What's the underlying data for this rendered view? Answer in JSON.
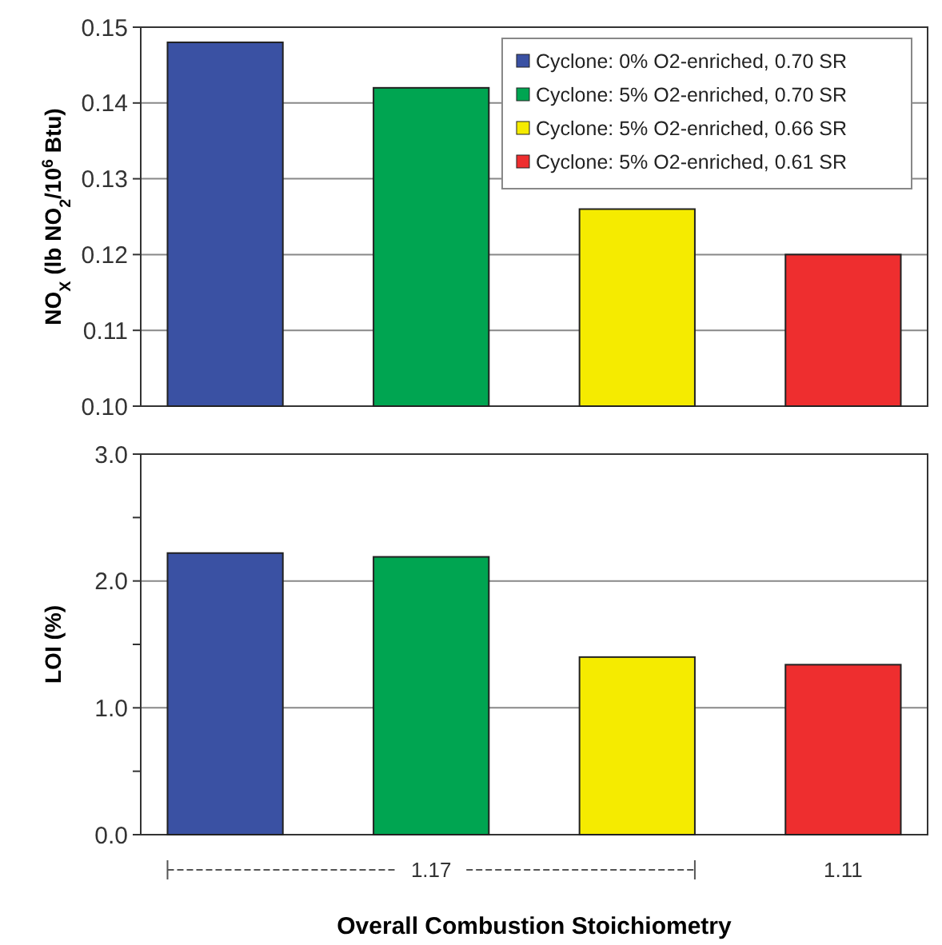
{
  "chart_data": [
    {
      "type": "bar",
      "ylabel": "NO$_{X}$ (lb NO$_{2}$/10$^{6}$ Btu)",
      "categories": [
        null,
        null,
        null,
        null
      ],
      "ylim": [
        0.1,
        0.15
      ],
      "yticks": [
        "0.10",
        0.11,
        0.12,
        0.13,
        0.14,
        0.15
      ],
      "grid": "y",
      "legend": "top right",
      "tick_labels": "y",
      "series": [
        {
          "name": "Cyclone: 0% O2-enriched, 0.70 SR",
          "color": "#3a51a3",
          "values": [
            0.148,
            null,
            null,
            null
          ]
        },
        {
          "name": "Cyclone: 5% O2-enriched, 0.70 SR",
          "color": "#00a551",
          "values": [
            null,
            0.142,
            null,
            null
          ]
        },
        {
          "name": "Cyclone: 5% O2-enriched, 0.66 SR",
          "color": "#f5eb00",
          "values": [
            null,
            null,
            0.126,
            null
          ]
        },
        {
          "name": "Cyclone: 5% O2-enriched, 0.61 SR",
          "color": "#ee2e2f",
          "values": [
            null,
            null,
            null,
            0.12
          ]
        }
      ]
    },
    {
      "type": "bar",
      "ylabel": "LOI (%)",
      "xlabel": "Overall Combustion Stoichiometry",
      "categories": [
        null,
        null,
        null,
        null
      ],
      "ylim": [
        0,
        3
      ],
      "yticks": [
        {
          "value": 0,
          "label": "0.0"
        },
        {
          "value": 0.5,
          "label": null
        },
        {
          "value": 1,
          "label": "1.0"
        },
        {
          "value": 1.5,
          "label": null
        },
        {
          "value": 2,
          "label": "2.0"
        },
        {
          "value": 2.5,
          "label": null
        },
        {
          "value": 3,
          "label": "3.0"
        }
      ],
      "grid": "y",
      "tick_labels": "y",
      "annotations": [
        "1.17",
        "1.11"
      ],
      "series": [
        {
          "color": "#3a51a3",
          "values": [
            2.22,
            null,
            null,
            null
          ]
        },
        {
          "color": "#00a551",
          "values": [
            null,
            2.19,
            null,
            null
          ]
        },
        {
          "color": "#f5eb00",
          "values": [
            null,
            null,
            1.4,
            null
          ]
        },
        {
          "color": "#ee2e2f",
          "values": [
            null,
            null,
            null,
            1.34
          ]
        }
      ]
    }
  ]
}
